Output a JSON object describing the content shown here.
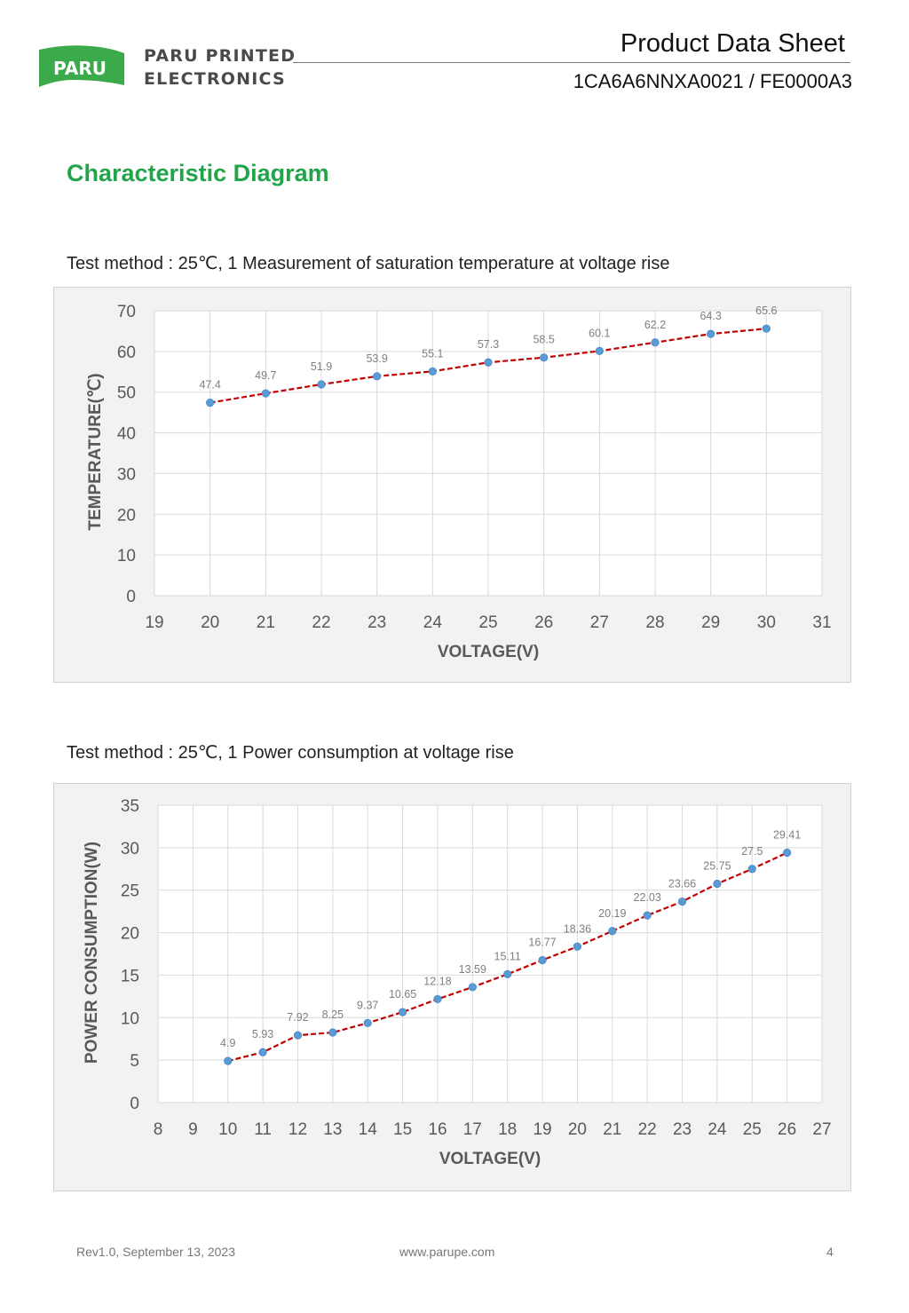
{
  "header": {
    "logo_badge": "PARU",
    "company_line1": "PARU PRINTED",
    "company_line2": "ELECTRONICS",
    "doc_title": "Product Data Sheet",
    "doc_code": "1CA6A6NNXA0021 / FE0000A3",
    "brand_color": "#3aaa4a"
  },
  "section_title": "Characteristic Diagram",
  "tests": [
    {
      "method": "Test method : 25℃, 1 Measurement of saturation temperature at voltage rise"
    },
    {
      "method": "Test method : 25℃, 1 Power consumption at voltage rise"
    }
  ],
  "chart_data": [
    {
      "type": "line",
      "title": "",
      "xlabel": "VOLTAGE(V)",
      "ylabel": "TEMPERATURE(℃)",
      "xlim": [
        19,
        31
      ],
      "ylim": [
        0,
        70
      ],
      "xticks": [
        19,
        20,
        21,
        22,
        23,
        24,
        25,
        26,
        27,
        28,
        29,
        30,
        31
      ],
      "yticks": [
        0,
        10,
        20,
        30,
        40,
        50,
        60,
        70
      ],
      "grid": true,
      "line_color": "#c00000",
      "line_style": "dashed",
      "marker_color": "#5b9bd5",
      "series": [
        {
          "x": [
            20,
            21,
            22,
            23,
            24,
            25,
            26,
            27,
            28,
            29,
            30
          ],
          "values": [
            47.4,
            49.7,
            51.9,
            53.9,
            55.1,
            57.3,
            58.5,
            60.1,
            62.2,
            64.3,
            65.6
          ],
          "labels": [
            "47.4",
            "49.7",
            "51.9",
            "53.9",
            "55.1",
            "57.3",
            "58.5",
            "60.1",
            "62.2",
            "64.3",
            "65.6"
          ]
        }
      ]
    },
    {
      "type": "line",
      "title": "",
      "xlabel": "VOLTAGE(V)",
      "ylabel": "POWER CONSUMPTION(W)",
      "xlim": [
        8,
        27
      ],
      "ylim": [
        0,
        35
      ],
      "xticks": [
        8,
        9,
        10,
        11,
        12,
        13,
        14,
        15,
        16,
        17,
        18,
        19,
        20,
        21,
        22,
        23,
        24,
        25,
        26,
        27
      ],
      "yticks": [
        0,
        5,
        10,
        15,
        20,
        25,
        30,
        35
      ],
      "grid": true,
      "line_color": "#c00000",
      "line_style": "dashed",
      "marker_color": "#5b9bd5",
      "series": [
        {
          "x": [
            10,
            11,
            12,
            13,
            14,
            15,
            16,
            17,
            18,
            19,
            20,
            21,
            22,
            23,
            24,
            25,
            26
          ],
          "values": [
            4.9,
            5.93,
            7.92,
            8.25,
            9.37,
            10.65,
            12.18,
            13.59,
            15.11,
            16.77,
            18.36,
            20.19,
            22.03,
            23.66,
            25.75,
            27.5,
            29.41
          ],
          "labels": [
            "4.9",
            "5.93",
            "7.92",
            "8.25",
            "9.37",
            "10.65",
            "12.18",
            "13.59",
            "15.11",
            "16.77",
            "18.36",
            "20.19",
            "22.03",
            "23.66",
            "25.75",
            "27.5",
            "29.41"
          ]
        }
      ]
    }
  ],
  "footer": {
    "revision": "Rev1.0, September 13, 2023",
    "website": "www.parupe.com",
    "page_number": "4"
  }
}
